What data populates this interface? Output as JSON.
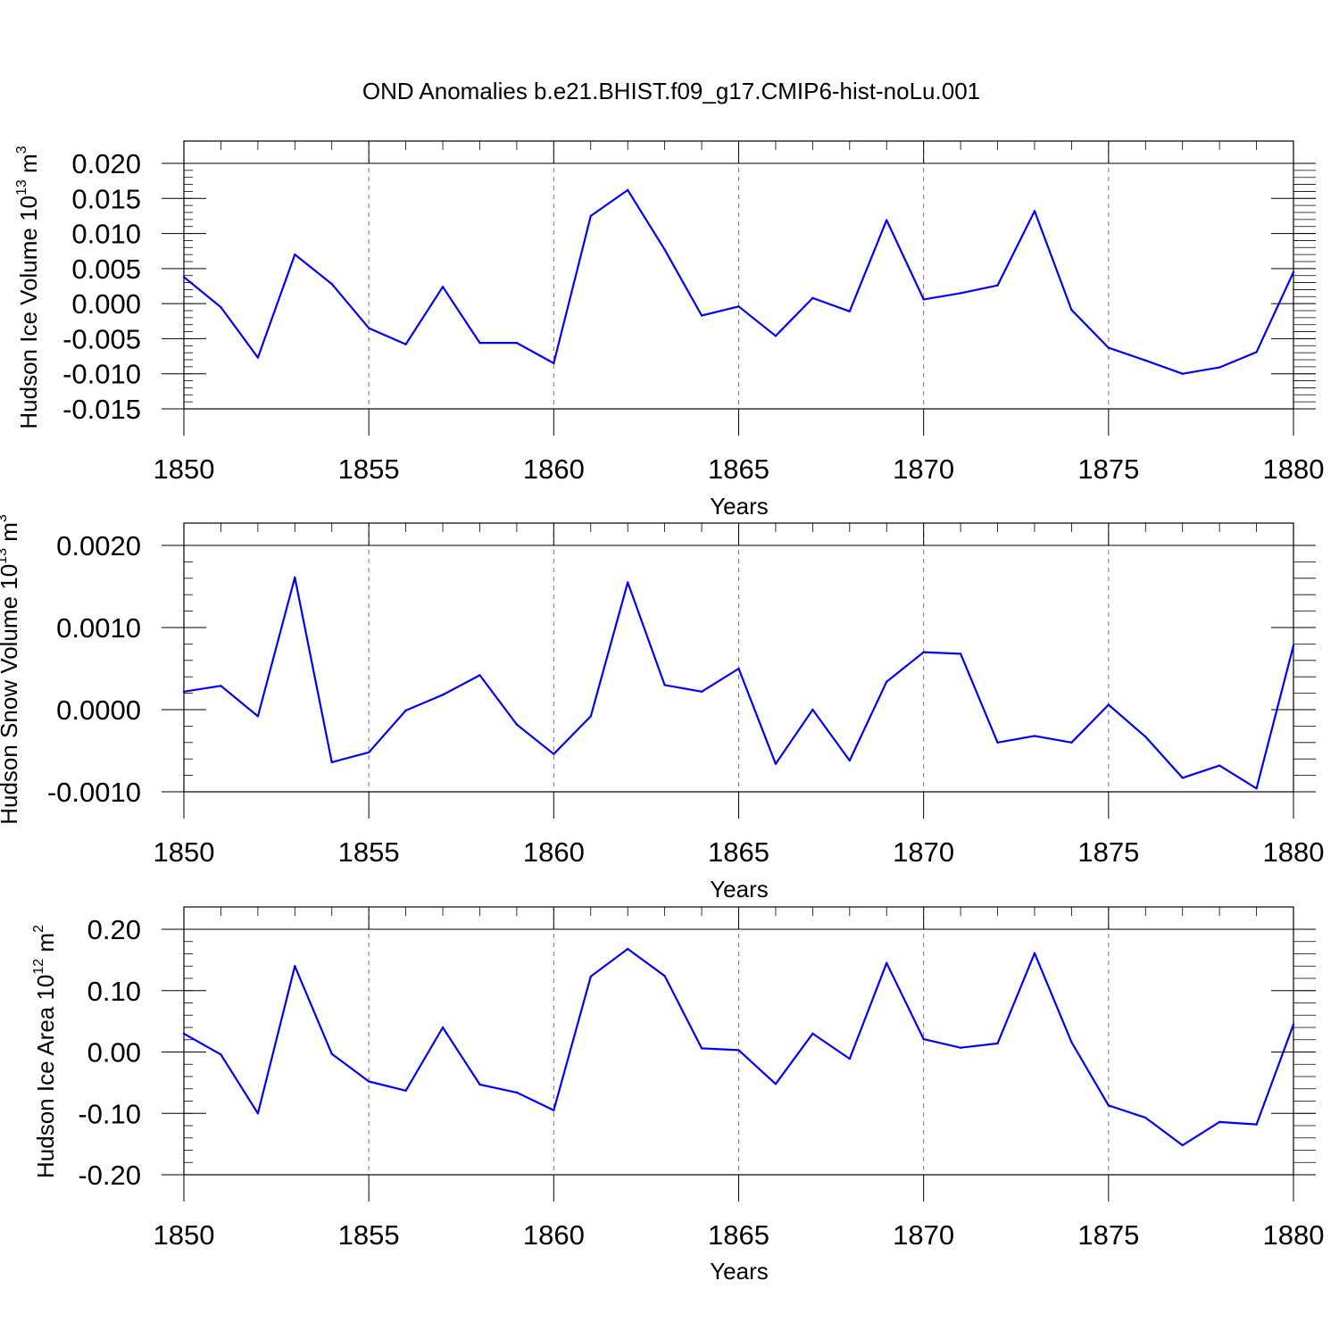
{
  "title": "OND Anomalies b.e21.BHIST.f09_g17.CMIP6-hist-noLu.001",
  "colors": {
    "line": "#0000ff",
    "grid": "#777777"
  },
  "chart_data": [
    {
      "type": "line",
      "xlabel": "Years",
      "ylabel": "Hudson Ice Volume 10",
      "ylabel_exp": "13",
      "ylabel_unit": " m",
      "ylabel_unit_exp": "3",
      "xlim": [
        1850,
        1880
      ],
      "ylim": [
        -0.015,
        0.02
      ],
      "yticks": [
        -0.015,
        -0.01,
        -0.005,
        0.0,
        0.005,
        0.01,
        0.015,
        0.02
      ],
      "ytick_labels": [
        "-0.015",
        "-0.010",
        "-0.005",
        "0.000",
        "0.005",
        "0.010",
        "0.015",
        "0.020"
      ],
      "xticks": [
        1850,
        1855,
        1860,
        1865,
        1870,
        1875,
        1880
      ],
      "xtick_labels": [
        "1850",
        "1855",
        "1860",
        "1865",
        "1870",
        "1875",
        "1880"
      ],
      "grid_x": true,
      "x": [
        1850,
        1851,
        1852,
        1853,
        1854,
        1855,
        1856,
        1857,
        1858,
        1859,
        1860,
        1861,
        1862,
        1863,
        1864,
        1865,
        1866,
        1867,
        1868,
        1869,
        1870,
        1871,
        1872,
        1873,
        1874,
        1875,
        1876,
        1877,
        1878,
        1879,
        1880
      ],
      "y": [
        0.0038,
        -0.0005,
        -0.0077,
        0.007,
        0.0028,
        -0.0035,
        -0.0058,
        0.0024,
        -0.0056,
        -0.0056,
        -0.0085,
        0.0125,
        0.0162,
        0.0077,
        -0.0017,
        -0.0004,
        -0.0046,
        0.0008,
        -0.0011,
        0.0119,
        0.0006,
        0.0015,
        0.0026,
        0.0132,
        -0.0009,
        -0.0063,
        -0.0081,
        -0.01,
        -0.0091,
        -0.0069,
        0.0045
      ]
    },
    {
      "type": "line",
      "xlabel": "Years",
      "ylabel": "Hudson Snow Volume 10",
      "ylabel_exp": "13",
      "ylabel_unit": " m",
      "ylabel_unit_exp": "3",
      "xlim": [
        1850,
        1880
      ],
      "ylim": [
        -0.001,
        0.002
      ],
      "yticks": [
        -0.001,
        0.0,
        0.001,
        0.002
      ],
      "ytick_labels": [
        "-0.0010",
        "0.0000",
        "0.0010",
        "0.0020"
      ],
      "xticks": [
        1850,
        1855,
        1860,
        1865,
        1870,
        1875,
        1880
      ],
      "xtick_labels": [
        "1850",
        "1855",
        "1860",
        "1865",
        "1870",
        "1875",
        "1880"
      ],
      "grid_x": true,
      "x": [
        1850,
        1851,
        1852,
        1853,
        1854,
        1855,
        1856,
        1857,
        1858,
        1859,
        1860,
        1861,
        1862,
        1863,
        1864,
        1865,
        1866,
        1867,
        1868,
        1869,
        1870,
        1871,
        1872,
        1873,
        1874,
        1875,
        1876,
        1877,
        1878,
        1879,
        1880
      ],
      "y": [
        0.00022,
        0.00029,
        -8e-05,
        0.00161,
        -0.00064,
        -0.00052,
        -1e-05,
        0.00018,
        0.00042,
        -0.00018,
        -0.00054,
        -8e-05,
        0.00155,
        0.0003,
        0.00022,
        0.0005,
        -0.00066,
        0.0,
        -0.00062,
        0.00034,
        0.0007,
        0.00068,
        -0.0004,
        -0.00032,
        -0.0004,
        6e-05,
        -0.00033,
        -0.00083,
        -0.00068,
        -0.00096,
        0.00078
      ]
    },
    {
      "type": "line",
      "xlabel": "Years",
      "ylabel": "Hudson Ice Area 10",
      "ylabel_exp": "12",
      "ylabel_unit": " m",
      "ylabel_unit_exp": "2",
      "xlim": [
        1850,
        1880
      ],
      "ylim": [
        -0.2,
        0.2
      ],
      "yticks": [
        -0.2,
        -0.1,
        0.0,
        0.1,
        0.2
      ],
      "ytick_labels": [
        "-0.20",
        "-0.10",
        "0.00",
        "0.10",
        "0.20"
      ],
      "xticks": [
        1850,
        1855,
        1860,
        1865,
        1870,
        1875,
        1880
      ],
      "xtick_labels": [
        "1850",
        "1855",
        "1860",
        "1865",
        "1870",
        "1875",
        "1880"
      ],
      "grid_x": true,
      "x": [
        1850,
        1851,
        1852,
        1853,
        1854,
        1855,
        1856,
        1857,
        1858,
        1859,
        1860,
        1861,
        1862,
        1863,
        1864,
        1865,
        1866,
        1867,
        1868,
        1869,
        1870,
        1871,
        1872,
        1873,
        1874,
        1875,
        1876,
        1877,
        1878,
        1879,
        1880
      ],
      "y": [
        0.03,
        -0.004,
        -0.1,
        0.14,
        -0.003,
        -0.048,
        -0.063,
        0.04,
        -0.053,
        -0.066,
        -0.095,
        0.123,
        0.168,
        0.124,
        0.006,
        0.003,
        -0.052,
        0.03,
        -0.011,
        0.145,
        0.021,
        0.007,
        0.014,
        0.161,
        0.016,
        -0.087,
        -0.107,
        -0.152,
        -0.114,
        -0.118,
        0.045
      ]
    }
  ]
}
